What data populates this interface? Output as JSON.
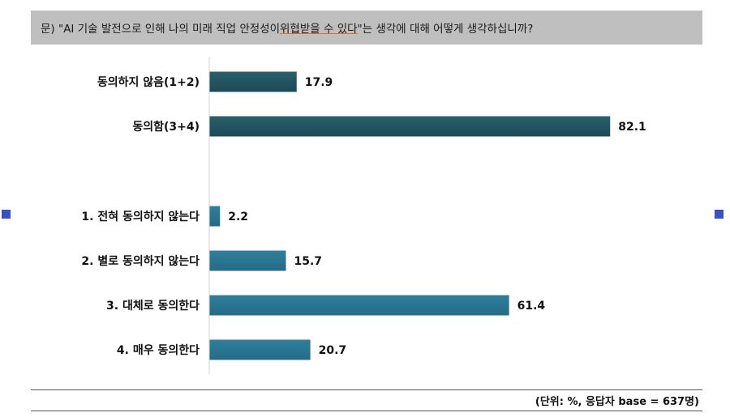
{
  "question": {
    "prefix": "문) \"AI 기술 발전으로 인해 나의 미래 직업 안정성이 ",
    "underlined": "위협받을 수 있다",
    "suffix": "\"는 생각에 대해 어떻게 생각하십니까?"
  },
  "footnote": "(단위: %, 응답자 base = 637명)",
  "colors": {
    "summary_bar": "#1b4a56",
    "detail_bar": "#246b86",
    "marker": "#3a4fc8"
  },
  "chart_data": {
    "type": "bar",
    "orientation": "horizontal",
    "categories": [
      "동의하지 않음(1+2)",
      "동의함(3+4)",
      "1. 전혀 동의하지 않는다",
      "2. 별로 동의하지 않는다",
      "3. 대체로 동의한다",
      "4. 매우 동의한다"
    ],
    "values": [
      17.9,
      82.1,
      2.2,
      15.7,
      61.4,
      20.7
    ],
    "value_labels": [
      "17.9",
      "82.1",
      "2.2",
      "15.7",
      "61.4",
      "20.7"
    ],
    "groups": [
      "summary",
      "summary",
      "detail",
      "detail",
      "detail",
      "detail"
    ],
    "xlim": [
      0,
      100
    ],
    "title": "",
    "xlabel": "",
    "ylabel": "",
    "grid": false,
    "legend": "none"
  }
}
